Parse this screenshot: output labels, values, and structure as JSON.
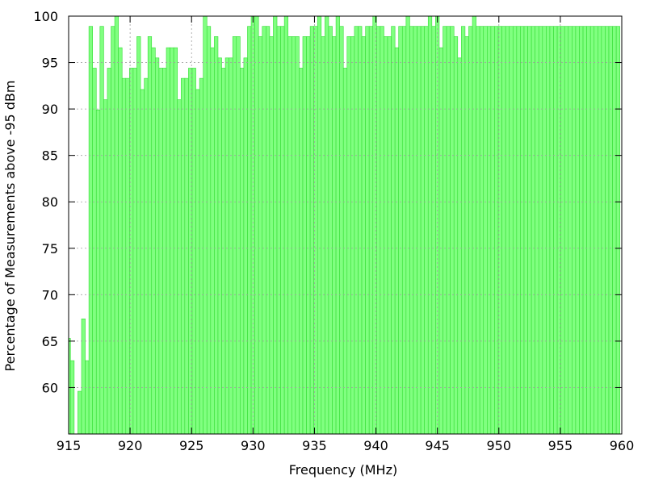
{
  "chart_data": {
    "type": "bar",
    "title": "",
    "xlabel": "Frequency (MHz)",
    "ylabel": "Percentage of Measurements above -95 dBm",
    "xlim": [
      915,
      960
    ],
    "ylim": [
      55,
      100
    ],
    "x_ticks": [
      915,
      920,
      925,
      930,
      935,
      940,
      945,
      950,
      955,
      960
    ],
    "y_ticks": [
      60,
      65,
      70,
      75,
      80,
      85,
      90,
      95,
      100
    ],
    "grid": true,
    "bar_color": "#80ff80",
    "bar_edge_color": "#33dd33",
    "bin_width": 0.3,
    "bins_start": 914.85,
    "values": [
      65.3,
      62.9,
      55.0,
      59.6,
      67.4,
      62.9,
      98.9,
      94.4,
      89.9,
      98.9,
      91.0,
      94.4,
      98.9,
      100.0,
      96.6,
      93.3,
      93.3,
      94.4,
      94.4,
      97.8,
      92.1,
      93.3,
      97.8,
      96.6,
      95.5,
      94.4,
      94.4,
      96.6,
      96.6,
      96.6,
      91.0,
      93.3,
      93.3,
      94.4,
      94.4,
      92.1,
      93.3,
      100.0,
      98.9,
      96.6,
      97.8,
      95.5,
      94.4,
      95.5,
      95.5,
      97.8,
      97.8,
      94.4,
      95.5,
      98.9,
      100.0,
      100.0,
      97.8,
      98.9,
      98.9,
      97.8,
      100.0,
      98.9,
      98.9,
      100.0,
      97.8,
      97.8,
      97.8,
      94.4,
      97.8,
      97.8,
      98.9,
      98.9,
      100.0,
      97.8,
      100.0,
      98.9,
      97.8,
      100.0,
      98.9,
      94.4,
      97.8,
      97.8,
      98.9,
      98.9,
      97.8,
      98.9,
      98.9,
      100.0,
      98.9,
      98.9,
      97.8,
      97.8,
      98.9,
      96.6,
      98.9,
      98.9,
      100.0,
      98.9,
      98.9,
      98.9,
      98.9,
      98.9,
      100.0,
      98.9,
      100.0,
      96.6,
      98.9,
      98.9,
      98.9,
      97.8,
      95.5,
      98.9,
      97.8,
      98.9,
      100.0,
      98.9,
      98.9,
      98.9,
      98.9,
      98.9,
      98.9,
      98.9,
      98.9,
      98.9,
      98.9,
      98.9,
      98.9,
      98.9,
      98.9,
      98.9,
      98.9,
      98.9,
      98.9,
      98.9,
      98.9,
      98.9,
      98.9,
      98.9,
      98.9,
      98.9,
      98.9,
      98.9,
      98.9,
      98.9,
      98.9,
      98.9,
      98.9,
      98.9,
      98.9,
      98.9,
      98.9,
      98.9,
      98.9,
      98.9
    ]
  }
}
